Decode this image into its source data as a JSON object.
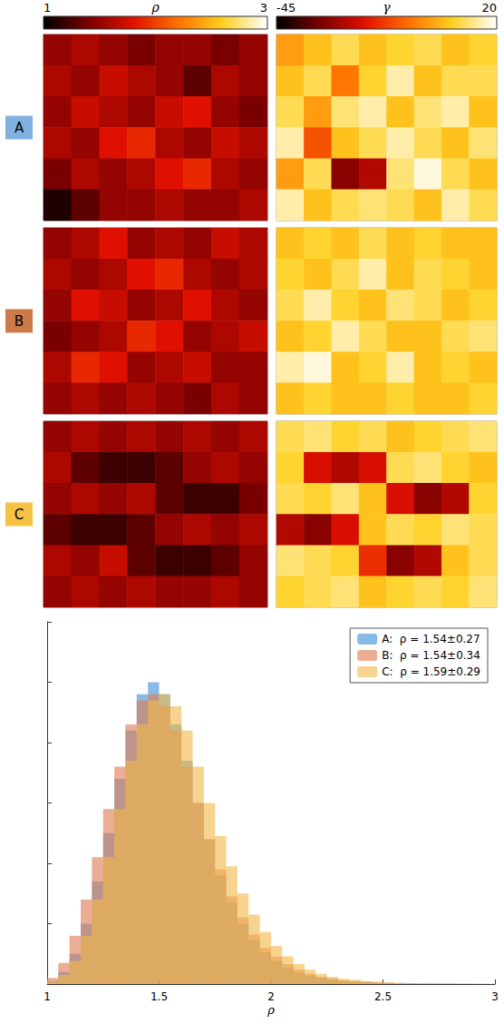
{
  "colorbars": [
    {
      "title": "ρ",
      "range": [
        1,
        3
      ],
      "ticks": [
        1,
        3
      ]
    },
    {
      "title": "γ",
      "range": [
        -45,
        20
      ],
      "ticks": [
        -45,
        20
      ]
    }
  ],
  "rows": [
    {
      "label": "A",
      "color": "#7fb2e0",
      "maps": [
        {
          "variable": "ρ",
          "cells": [
            [
              1.5,
              1.6,
              1.5,
              1.4,
              1.5,
              1.5,
              1.4,
              1.5
            ],
            [
              1.6,
              1.5,
              1.7,
              1.6,
              1.5,
              1.3,
              1.6,
              1.5
            ],
            [
              1.5,
              1.7,
              1.6,
              1.5,
              1.7,
              1.8,
              1.5,
              1.4
            ],
            [
              1.6,
              1.5,
              1.8,
              1.9,
              1.6,
              1.5,
              1.7,
              1.6
            ],
            [
              1.4,
              1.6,
              1.5,
              1.6,
              1.8,
              1.9,
              1.6,
              1.5
            ],
            [
              1.1,
              1.3,
              1.5,
              1.5,
              1.6,
              1.5,
              1.5,
              1.6
            ]
          ]
        },
        {
          "variable": "γ",
          "cells": [
            [
              0,
              5,
              10,
              5,
              8,
              10,
              5,
              8
            ],
            [
              5,
              10,
              -5,
              8,
              15,
              5,
              10,
              10
            ],
            [
              10,
              0,
              12,
              15,
              5,
              12,
              15,
              5
            ],
            [
              15,
              -10,
              5,
              10,
              15,
              10,
              5,
              12
            ],
            [
              0,
              10,
              -30,
              -25,
              12,
              18,
              10,
              5
            ],
            [
              15,
              5,
              10,
              12,
              10,
              5,
              15,
              10
            ]
          ]
        }
      ]
    },
    {
      "label": "B",
      "color": "#cc7a4a",
      "maps": [
        {
          "variable": "ρ",
          "cells": [
            [
              1.5,
              1.6,
              1.8,
              1.5,
              1.6,
              1.5,
              1.7,
              1.6
            ],
            [
              1.6,
              1.5,
              1.6,
              1.8,
              1.9,
              1.6,
              1.5,
              1.6
            ],
            [
              1.5,
              1.8,
              1.7,
              1.5,
              1.6,
              1.8,
              1.6,
              1.5
            ],
            [
              1.4,
              1.5,
              1.6,
              1.9,
              1.8,
              1.5,
              1.6,
              1.7
            ],
            [
              1.6,
              1.9,
              1.8,
              1.5,
              1.6,
              1.7,
              1.5,
              1.5
            ],
            [
              1.5,
              1.6,
              1.5,
              1.6,
              1.5,
              1.4,
              1.6,
              1.5
            ]
          ]
        },
        {
          "variable": "γ",
          "cells": [
            [
              5,
              8,
              5,
              10,
              5,
              8,
              5,
              5
            ],
            [
              8,
              5,
              10,
              15,
              5,
              10,
              8,
              5
            ],
            [
              10,
              15,
              8,
              5,
              12,
              10,
              5,
              8
            ],
            [
              5,
              8,
              15,
              10,
              5,
              5,
              10,
              12
            ],
            [
              15,
              18,
              5,
              8,
              15,
              5,
              8,
              5
            ],
            [
              5,
              8,
              5,
              5,
              8,
              5,
              5,
              8
            ]
          ]
        }
      ]
    },
    {
      "label": "C",
      "color": "#f5c243",
      "maps": [
        {
          "variable": "ρ",
          "cells": [
            [
              1.5,
              1.6,
              1.5,
              1.6,
              1.5,
              1.6,
              1.5,
              1.6
            ],
            [
              1.6,
              1.3,
              1.2,
              1.2,
              1.3,
              1.5,
              1.6,
              1.5
            ],
            [
              1.5,
              1.6,
              1.5,
              1.6,
              1.3,
              1.2,
              1.2,
              1.4
            ],
            [
              1.3,
              1.2,
              1.2,
              1.3,
              1.5,
              1.6,
              1.5,
              1.6
            ],
            [
              1.6,
              1.5,
              1.7,
              1.3,
              1.2,
              1.2,
              1.3,
              1.5
            ],
            [
              1.5,
              1.6,
              1.5,
              1.6,
              1.5,
              1.5,
              1.6,
              1.5
            ]
          ]
        },
        {
          "variable": "γ",
          "cells": [
            [
              10,
              12,
              8,
              10,
              5,
              8,
              10,
              12
            ],
            [
              8,
              -20,
              -25,
              -20,
              10,
              12,
              8,
              5
            ],
            [
              10,
              8,
              12,
              5,
              -20,
              -30,
              -25,
              8
            ],
            [
              -25,
              -30,
              -20,
              5,
              10,
              8,
              12,
              10
            ],
            [
              12,
              10,
              8,
              -15,
              -30,
              -25,
              5,
              10
            ],
            [
              8,
              10,
              12,
              5,
              8,
              10,
              8,
              12
            ]
          ]
        }
      ]
    }
  ],
  "chart_data": {
    "type": "histogram",
    "xlabel": "ρ",
    "bins": [
      1,
      1.05,
      1.1,
      1.15,
      1.2,
      1.25,
      1.3,
      1.35,
      1.4,
      1.45,
      1.5,
      1.55,
      1.6,
      1.65,
      1.7,
      1.75,
      1.8,
      1.85,
      1.9,
      1.95,
      2,
      2.05,
      2.1,
      2.15,
      2.2,
      2.25,
      2.3,
      2.35,
      2.4,
      2.45,
      2.5,
      2.55,
      2.6,
      2.65,
      2.7,
      2.75,
      2.8,
      2.85,
      2.9,
      2.95,
      3
    ],
    "series": [
      {
        "name": "A:  ρ = 1.54±0.27",
        "color": "#3d91d8",
        "values": [
          0.05,
          0.2,
          0.5,
          1.0,
          1.7,
          2.5,
          3.4,
          4.2,
          4.8,
          5.0,
          4.8,
          4.3,
          3.7,
          3.0,
          2.4,
          1.8,
          1.35,
          1.0,
          0.72,
          0.52,
          0.38,
          0.27,
          0.19,
          0.14,
          0.1,
          0.07,
          0.05,
          0.04,
          0.03,
          0.02,
          0.015,
          0.01,
          0.01,
          0.005,
          0.005,
          0.005,
          0.003,
          0.003,
          0.002,
          0.002
        ]
      },
      {
        "name": "B:  ρ = 1.54±0.34",
        "color": "#e07b54",
        "values": [
          0.1,
          0.35,
          0.8,
          1.4,
          2.1,
          2.9,
          3.6,
          4.3,
          4.7,
          4.8,
          4.6,
          4.2,
          3.6,
          3.0,
          2.4,
          1.9,
          1.45,
          1.1,
          0.82,
          0.6,
          0.45,
          0.33,
          0.24,
          0.17,
          0.12,
          0.09,
          0.06,
          0.05,
          0.04,
          0.03,
          0.02,
          0.015,
          0.01,
          0.01,
          0.008,
          0.006,
          0.005,
          0.004,
          0.003,
          0.002
        ]
      },
      {
        "name": "C:  ρ = 1.59±0.29",
        "color": "#f0b848",
        "values": [
          0.04,
          0.15,
          0.38,
          0.8,
          1.4,
          2.1,
          2.9,
          3.7,
          4.3,
          4.7,
          4.8,
          4.6,
          4.2,
          3.6,
          3.0,
          2.45,
          1.95,
          1.5,
          1.15,
          0.86,
          0.63,
          0.46,
          0.33,
          0.24,
          0.17,
          0.12,
          0.09,
          0.07,
          0.05,
          0.04,
          0.03,
          0.02,
          0.015,
          0.01,
          0.008,
          0.006,
          0.005,
          0.004,
          0.003,
          0.002
        ]
      }
    ],
    "xlim": [
      1,
      3
    ],
    "xticks": [
      1,
      1.5,
      2,
      2.5,
      3
    ],
    "ylim": [
      0,
      6
    ],
    "yticks": [
      0,
      1,
      2,
      3,
      4,
      5,
      6
    ],
    "tick_labels": "x",
    "legend": "upper right"
  }
}
